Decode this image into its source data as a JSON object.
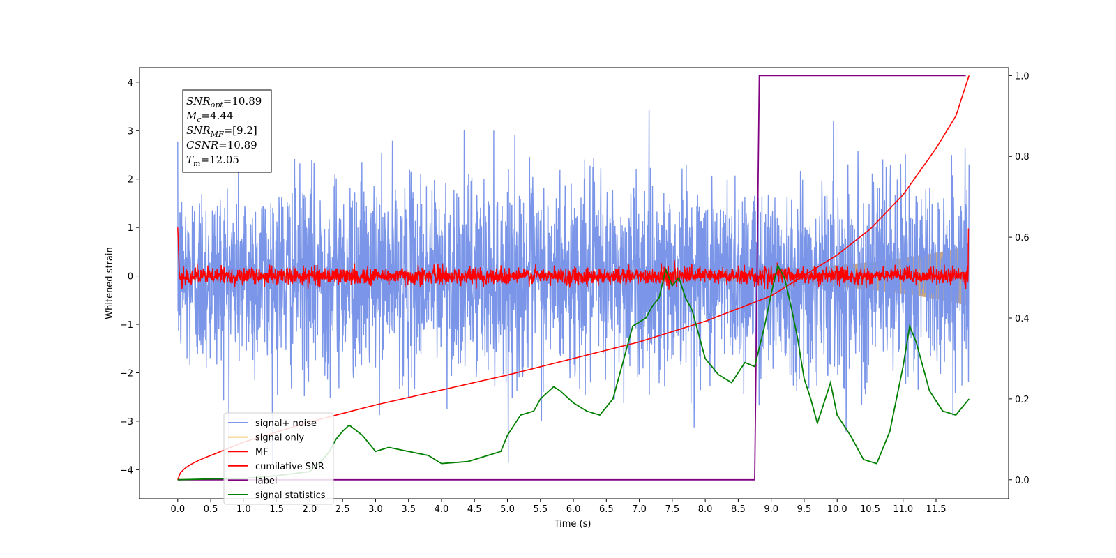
{
  "chart_data": {
    "type": "line",
    "xlabel": "Time (s)",
    "ylabel": "Whitened strain",
    "xlim": [
      -0.58,
      12.6
    ],
    "ylim": [
      -4.6,
      4.3
    ],
    "y2lim": [
      -0.047,
      1.0196
    ],
    "x_ticks": [
      0.0,
      0.5,
      1.0,
      1.5,
      2.0,
      2.5,
      3.0,
      3.5,
      4.0,
      4.5,
      5.0,
      5.5,
      6.0,
      6.5,
      7.0,
      7.5,
      8.0,
      8.5,
      9.0,
      9.5,
      10.0,
      10.5,
      11.0,
      11.5
    ],
    "x_tick_labels": [
      "0.0",
      "0.5",
      "1.0",
      "1.5",
      "2.0",
      "2.5",
      "3.0",
      "3.5",
      "4.0",
      "4.5",
      "5.0",
      "5.5",
      "6.0",
      "6.5",
      "7.0",
      "7.5",
      "8.0",
      "8.5",
      "9.0",
      "9.5",
      "10.0",
      "10.5",
      "11.0",
      "11.5"
    ],
    "y_ticks": [
      -4,
      -3,
      -2,
      -1,
      0,
      1,
      2,
      3,
      4
    ],
    "y_tick_labels": [
      "−4",
      "−3",
      "−2",
      "−1",
      "0",
      "1",
      "2",
      "3",
      "4"
    ],
    "y2_ticks": [
      0.0,
      0.2,
      0.4,
      0.6,
      0.8,
      1.0
    ],
    "y2_tick_labels": [
      "0.0",
      "0.2",
      "0.4",
      "0.6",
      "0.8",
      "1.0"
    ],
    "grid": false,
    "legend_position": "lower-left",
    "duration": 12.0,
    "series": [
      {
        "name": "signal+ noise",
        "color": "#7b96e8",
        "axis": "left",
        "noise_sigma": 1.0,
        "clip": [
          -3.9,
          3.9
        ]
      },
      {
        "name": "signal only",
        "color": "#f7c873",
        "axis": "left",
        "amp_start": 0.07,
        "amp_end": 0.62
      },
      {
        "name": "MF",
        "color": "#ff0000",
        "axis": "left",
        "start_value": 1.0,
        "end_value": 0.97,
        "noise_sigma": 0.09
      },
      {
        "name": "cumilative SNR",
        "color": "#ff0000",
        "axis": "right",
        "x": [
          0,
          0.5,
          1,
          2,
          3,
          4,
          5,
          6,
          7,
          8,
          9,
          10,
          10.5,
          11,
          11.5,
          11.8,
          12.0
        ],
        "y": [
          0,
          0.06,
          0.093,
          0.143,
          0.185,
          0.222,
          0.259,
          0.3,
          0.341,
          0.392,
          0.455,
          0.556,
          0.62,
          0.705,
          0.82,
          0.9,
          1.0
        ]
      },
      {
        "name": "label",
        "color": "#800080",
        "axis": "right",
        "x": [
          0,
          8.75,
          8.82,
          11.95
        ],
        "y": [
          0,
          0,
          1,
          1
        ]
      },
      {
        "name": "signal statistics",
        "color": "#007f00",
        "axis": "right",
        "x": [
          0,
          0.5,
          1,
          1.5,
          2,
          2.2,
          2.3,
          2.4,
          2.5,
          2.6,
          2.8,
          3,
          3.2,
          3.5,
          3.8,
          4,
          4.4,
          4.7,
          4.9,
          5,
          5.2,
          5.4,
          5.5,
          5.7,
          5.8,
          6,
          6.2,
          6.4,
          6.6,
          6.8,
          6.9,
          7,
          7.1,
          7.2,
          7.3,
          7.4,
          7.5,
          7.6,
          7.7,
          7.8,
          8,
          8.2,
          8.4,
          8.6,
          8.75,
          8.9,
          9.0,
          9.1,
          9.2,
          9.3,
          9.4,
          9.5,
          9.6,
          9.7,
          9.8,
          9.9,
          10,
          10.2,
          10.4,
          10.6,
          10.8,
          11,
          11.1,
          11.2,
          11.4,
          11.6,
          11.8,
          12
        ],
        "y": [
          0.0,
          0.002,
          0.003,
          0.01,
          0.02,
          0.05,
          0.07,
          0.1,
          0.12,
          0.135,
          0.11,
          0.07,
          0.08,
          0.07,
          0.06,
          0.04,
          0.045,
          0.06,
          0.07,
          0.11,
          0.16,
          0.17,
          0.2,
          0.23,
          0.22,
          0.19,
          0.17,
          0.16,
          0.2,
          0.32,
          0.38,
          0.39,
          0.4,
          0.43,
          0.45,
          0.52,
          0.48,
          0.5,
          0.45,
          0.42,
          0.3,
          0.26,
          0.24,
          0.29,
          0.28,
          0.38,
          0.46,
          0.53,
          0.5,
          0.43,
          0.35,
          0.25,
          0.2,
          0.14,
          0.19,
          0.24,
          0.16,
          0.11,
          0.05,
          0.04,
          0.12,
          0.28,
          0.38,
          0.34,
          0.22,
          0.17,
          0.16,
          0.2
        ]
      }
    ]
  },
  "info_box": {
    "lines": [
      {
        "sym": "SNR",
        "sub": "opt",
        "val": "=10.89"
      },
      {
        "sym": "M",
        "sub": "c",
        "val": "=4.44"
      },
      {
        "sym": "SNR",
        "sub": "MF",
        "val": "=[9.2]"
      },
      {
        "sym": "CSNR",
        "sub": "",
        "val": "=10.89"
      },
      {
        "sym": "T",
        "sub": "m",
        "val": "=12.05"
      }
    ]
  }
}
